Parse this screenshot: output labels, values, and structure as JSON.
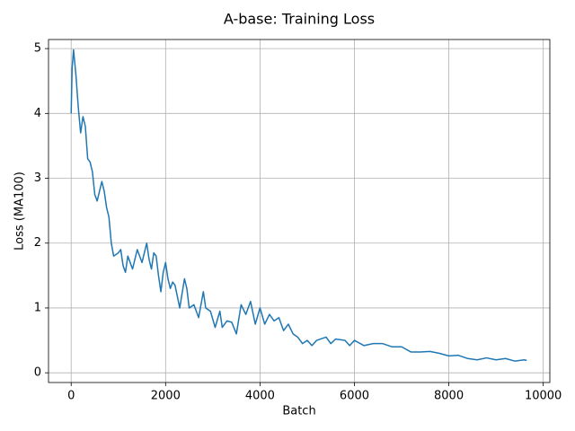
{
  "chart_data": {
    "type": "line",
    "title": "A-base: Training Loss",
    "x_label": "Batch",
    "y_label": "Loss (MA100)",
    "grid": true,
    "xlim": [
      -480,
      10140
    ],
    "ylim": [
      -0.15,
      5.14
    ],
    "xticks": [
      0,
      2000,
      4000,
      6000,
      8000,
      10000
    ],
    "yticks": [
      0,
      1,
      2,
      3,
      4,
      5
    ],
    "series": [
      {
        "name": "A-base",
        "color": "#1f77b4",
        "x": [
          0,
          20,
          50,
          100,
          150,
          200,
          250,
          300,
          350,
          400,
          450,
          500,
          550,
          600,
          650,
          700,
          750,
          800,
          850,
          900,
          1000,
          1050,
          1100,
          1150,
          1200,
          1300,
          1400,
          1500,
          1550,
          1600,
          1650,
          1700,
          1750,
          1800,
          1850,
          1900,
          1950,
          2000,
          2050,
          2100,
          2150,
          2200,
          2300,
          2400,
          2450,
          2500,
          2600,
          2700,
          2800,
          2850,
          2950,
          3050,
          3150,
          3200,
          3300,
          3400,
          3500,
          3600,
          3700,
          3800,
          3900,
          4000,
          4100,
          4200,
          4300,
          4400,
          4500,
          4600,
          4700,
          4800,
          4900,
          5000,
          5100,
          5200,
          5400,
          5500,
          5600,
          5800,
          5900,
          6000,
          6200,
          6400,
          6600,
          6800,
          7000,
          7200,
          7400,
          7600,
          7800,
          8000,
          8200,
          8400,
          8600,
          8800,
          9000,
          9200,
          9400,
          9600,
          9650
        ],
        "values": [
          4.0,
          4.7,
          4.98,
          4.6,
          4.1,
          3.7,
          3.95,
          3.8,
          3.3,
          3.25,
          3.1,
          2.75,
          2.65,
          2.8,
          2.95,
          2.8,
          2.55,
          2.4,
          2.0,
          1.8,
          1.85,
          1.9,
          1.65,
          1.55,
          1.8,
          1.6,
          1.9,
          1.7,
          1.85,
          2.0,
          1.75,
          1.6,
          1.85,
          1.8,
          1.5,
          1.25,
          1.55,
          1.7,
          1.45,
          1.3,
          1.4,
          1.35,
          1.0,
          1.45,
          1.3,
          1.0,
          1.05,
          0.85,
          1.25,
          1.0,
          0.95,
          0.7,
          0.95,
          0.7,
          0.8,
          0.78,
          0.6,
          1.05,
          0.9,
          1.1,
          0.75,
          1.0,
          0.75,
          0.9,
          0.8,
          0.85,
          0.65,
          0.75,
          0.6,
          0.55,
          0.45,
          0.5,
          0.42,
          0.5,
          0.55,
          0.45,
          0.52,
          0.5,
          0.42,
          0.5,
          0.42,
          0.45,
          0.45,
          0.4,
          0.4,
          0.32,
          0.32,
          0.33,
          0.3,
          0.26,
          0.27,
          0.22,
          0.2,
          0.23,
          0.2,
          0.22,
          0.18,
          0.2,
          0.19
        ]
      }
    ]
  }
}
